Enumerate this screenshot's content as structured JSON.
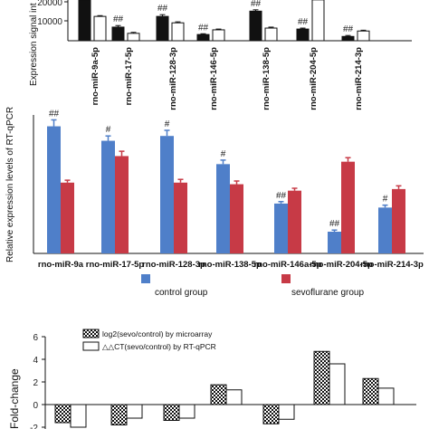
{
  "chart_data": [
    {
      "type": "bar",
      "panel": "top",
      "ylabel": "Expression signal int",
      "yticks": [
        "10000",
        "20000"
      ],
      "ylim": [
        0,
        21000
      ],
      "categories": [
        "rno-miR-9a-5p",
        "rno-miR-17-5p",
        "rno-miR-128-3p",
        "rno-miR-146-5p",
        "rno-miR-138-5p",
        "rno-miR-204-5p",
        "rno-miR-214-3p"
      ],
      "series": [
        {
          "values": [
            21000,
            7000,
            12500,
            3200,
            15200,
            6000,
            2200
          ],
          "errors": [
            600,
            800,
            900,
            400,
            700,
            500,
            500
          ],
          "color": "#111111"
        },
        {
          "values": [
            12500,
            3800,
            9200,
            5600,
            6500,
            21000,
            5000
          ],
          "errors": [
            400,
            500,
            500,
            400,
            500,
            600,
            400
          ],
          "color": "#ffffff"
        }
      ],
      "annotations": [
        "",
        "##",
        "##",
        "##",
        "##",
        "##",
        "##"
      ]
    },
    {
      "type": "bar",
      "panel": "middle",
      "ylabel": "Relative expression levels of RT-qPCR",
      "ylim": [
        0,
        0.9
      ],
      "categories": [
        "rno-miR-9a",
        "rno-miR-17-5p",
        "rno-miR-128-3p",
        "rno-miR-138-5p",
        "rno-miR-146a-5p",
        "rno-miR-204-5p",
        "rno-miR-214-3p"
      ],
      "series": [
        {
          "name": "control group",
          "values": [
            0.79,
            0.7,
            0.73,
            0.555,
            0.31,
            0.135,
            0.285
          ],
          "errors": [
            0.04,
            0.03,
            0.035,
            0.025,
            0.012,
            0.01,
            0.015
          ],
          "color": "#4f7fc9"
        },
        {
          "name": "sevoflurane group",
          "values": [
            0.44,
            0.605,
            0.44,
            0.43,
            0.39,
            0.57,
            0.4
          ],
          "errors": [
            0.015,
            0.03,
            0.02,
            0.02,
            0.015,
            0.025,
            0.02
          ],
          "color": "#c73a46"
        }
      ],
      "annotations": [
        "##",
        "#",
        "#",
        "#",
        "##",
        "##",
        "#"
      ]
    },
    {
      "type": "bar",
      "panel": "bottom",
      "ylabel": "Fold-change",
      "yticks": [
        "6",
        "4",
        "2",
        "0",
        "-2"
      ],
      "ylim": [
        -2,
        6
      ],
      "series": [
        {
          "name": "log2(sevo/control) by microarray",
          "values": [
            -1.6,
            -1.8,
            -1.4,
            1.75,
            -1.7,
            4.7,
            2.3
          ],
          "pattern": "checker"
        },
        {
          "name": "△△CT(sevo/control) by RT-qPCR",
          "values": [
            -2.0,
            -1.2,
            -1.2,
            1.3,
            -1.3,
            3.6,
            1.45
          ],
          "pattern": "white"
        }
      ]
    }
  ]
}
